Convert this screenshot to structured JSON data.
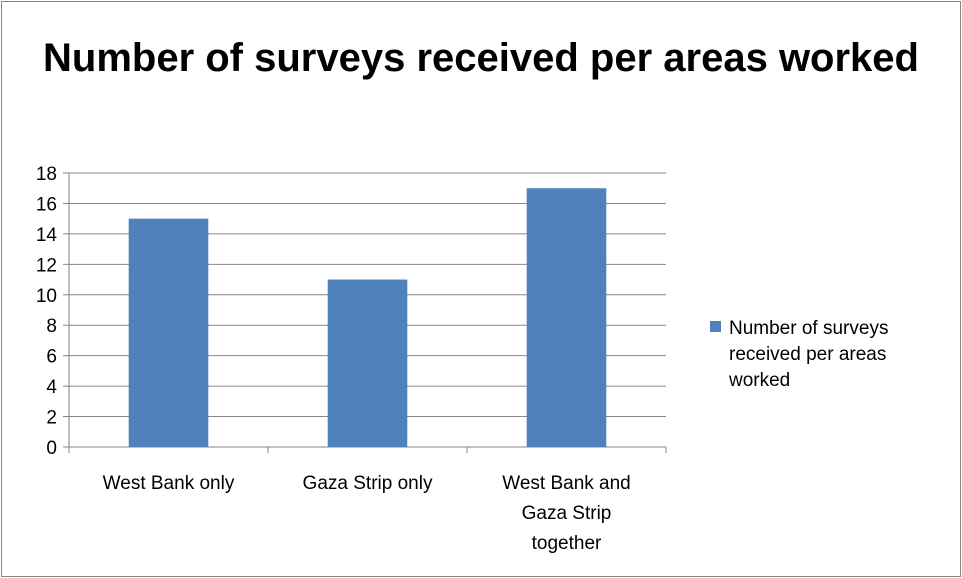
{
  "chart_data": {
    "type": "bar",
    "title": "Number of surveys received per areas worked",
    "categories": [
      "West Bank only",
      "Gaza Strip only",
      "West Bank and Gaza Strip together"
    ],
    "category_lines": [
      [
        "West Bank only"
      ],
      [
        "Gaza Strip only"
      ],
      [
        "West Bank and",
        "Gaza Strip",
        "together"
      ]
    ],
    "series": [
      {
        "name": "Number of surveys received per areas worked",
        "values": [
          15,
          11,
          17
        ],
        "color": "#4F81BD"
      }
    ],
    "ylim": [
      0,
      18
    ],
    "yticks": [
      0,
      2,
      4,
      6,
      8,
      10,
      12,
      14,
      16,
      18
    ],
    "grid": true,
    "legend_position": "right",
    "legend_lines": [
      "Number of surveys",
      "received per areas",
      "worked"
    ]
  }
}
